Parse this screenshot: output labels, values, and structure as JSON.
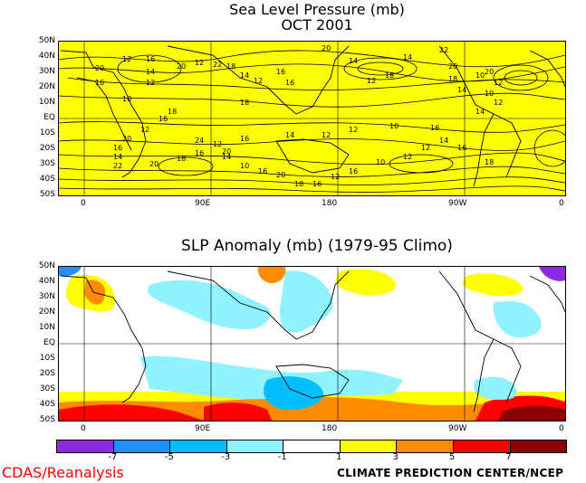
{
  "panel1": {
    "title_line1": "Sea Level Pressure (mb)",
    "title_line2": "OCT 2001",
    "contour_labels": [
      "20",
      "16",
      "12",
      "16",
      "14",
      "12",
      "20",
      "12",
      "22",
      "18",
      "14",
      "12",
      "10",
      "18",
      "16",
      "16",
      "20",
      "14",
      "12",
      "18",
      "14",
      "22",
      "20",
      "18",
      "14",
      "20",
      "10",
      "12",
      "10",
      "12",
      "14",
      "16",
      "10",
      "12",
      "12",
      "14",
      "16",
      "20",
      "16",
      "18",
      "20",
      "22",
      "14",
      "16",
      "20",
      "12",
      "16",
      "18",
      "24",
      "12",
      "14",
      "10",
      "16",
      "20",
      "18",
      "16",
      "12",
      "16",
      "10",
      "12",
      "12",
      "14",
      "16",
      "18"
    ]
  },
  "panel2": {
    "title": "SLP Anomaly (mb) (1979-95 Climo)"
  },
  "lat_labels": [
    "50N",
    "40N",
    "30N",
    "20N",
    "10N",
    "EQ",
    "10S",
    "20S",
    "30S",
    "40S",
    "50S"
  ],
  "lon_labels": [
    "0",
    "90E",
    "180",
    "90W",
    "0"
  ],
  "colorbar": {
    "colors": [
      "#8a2be2",
      "#1e90ff",
      "#00bfff",
      "#8ef2ff",
      "#ffffff",
      "#ffff00",
      "#ff8c00",
      "#ff0000",
      "#8b0000"
    ],
    "ticks": [
      "-7",
      "-5",
      "-3",
      "-1",
      "1",
      "3",
      "5",
      "7"
    ]
  },
  "credit_left": "CDAS/Reanalysis",
  "credit_right": "CLIMATE PREDICTION CENTER/NCEP"
}
